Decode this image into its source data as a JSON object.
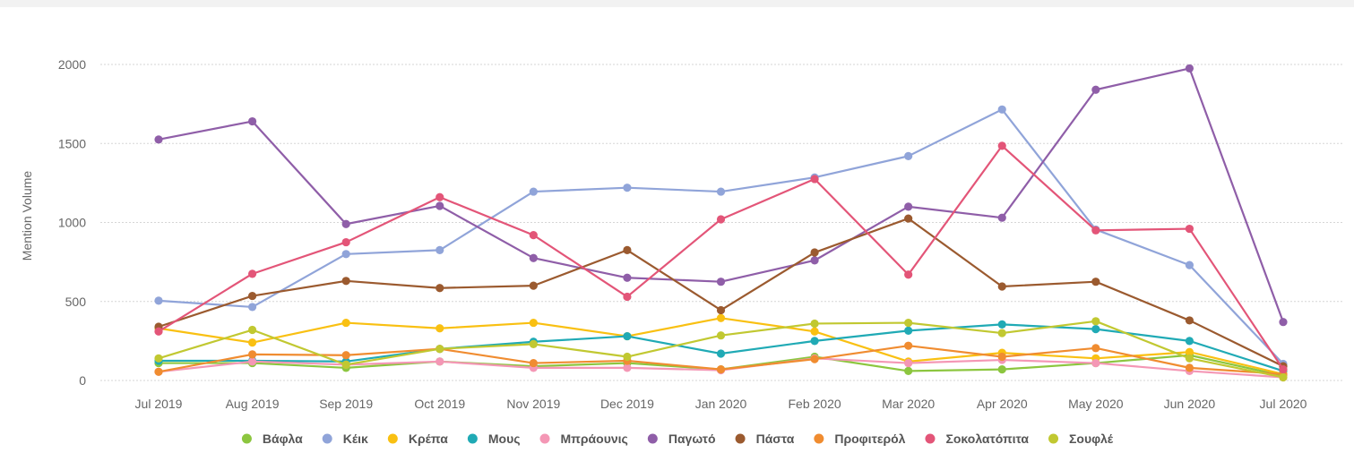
{
  "chart_data": {
    "type": "line",
    "title": "",
    "xlabel": "",
    "ylabel": "Mention Volume",
    "ylim": [
      0,
      2000
    ],
    "yticks": [
      0,
      500,
      1000,
      1500,
      2000
    ],
    "grid": true,
    "legend_position": "bottom-center",
    "categories": [
      "Jul 2019",
      "Aug 2019",
      "Sep 2019",
      "Oct 2019",
      "Nov 2019",
      "Dec 2019",
      "Jan 2020",
      "Feb 2020",
      "Mar 2020",
      "Apr 2020",
      "May 2020",
      "Jun 2020",
      "Jul 2020"
    ],
    "series": [
      {
        "name": "Βάφλα",
        "color": "#8cc63f",
        "values": [
          110,
          110,
          80,
          120,
          90,
          110,
          70,
          150,
          60,
          70,
          110,
          160,
          30
        ]
      },
      {
        "name": "Κέικ",
        "color": "#90a4d9",
        "values": [
          505,
          465,
          800,
          825,
          1195,
          1220,
          1195,
          1285,
          1420,
          1715,
          955,
          730,
          105
        ]
      },
      {
        "name": "Κρέπα",
        "color": "#f9c012",
        "values": [
          330,
          240,
          365,
          330,
          365,
          280,
          395,
          310,
          120,
          175,
          140,
          180,
          40
        ]
      },
      {
        "name": "Μους",
        "color": "#20aab5",
        "values": [
          125,
          125,
          120,
          200,
          245,
          280,
          170,
          250,
          315,
          355,
          325,
          250,
          60
        ]
      },
      {
        "name": "Μπράουνις",
        "color": "#f497b5",
        "values": [
          55,
          120,
          100,
          120,
          80,
          80,
          65,
          140,
          110,
          130,
          110,
          60,
          20
        ]
      },
      {
        "name": "Παγωτό",
        "color": "#8f5ea8",
        "values": [
          1525,
          1640,
          990,
          1105,
          775,
          650,
          625,
          760,
          1100,
          1030,
          1840,
          1975,
          370
        ]
      },
      {
        "name": "Πάστα",
        "color": "#9b5a2f",
        "values": [
          340,
          535,
          630,
          585,
          600,
          825,
          445,
          810,
          1025,
          595,
          625,
          380,
          90
        ]
      },
      {
        "name": "Προφιτερόλ",
        "color": "#f08c30",
        "values": [
          55,
          165,
          160,
          200,
          110,
          125,
          70,
          135,
          220,
          150,
          205,
          80,
          40
        ]
      },
      {
        "name": "Σοκολατόπιτα",
        "color": "#e35578",
        "values": [
          310,
          675,
          875,
          1160,
          920,
          530,
          1020,
          1275,
          670,
          1485,
          950,
          960,
          70
        ]
      },
      {
        "name": "Σουφλέ",
        "color": "#c1c831",
        "values": [
          140,
          320,
          100,
          200,
          230,
          150,
          285,
          360,
          365,
          300,
          375,
          140,
          20
        ]
      }
    ]
  }
}
